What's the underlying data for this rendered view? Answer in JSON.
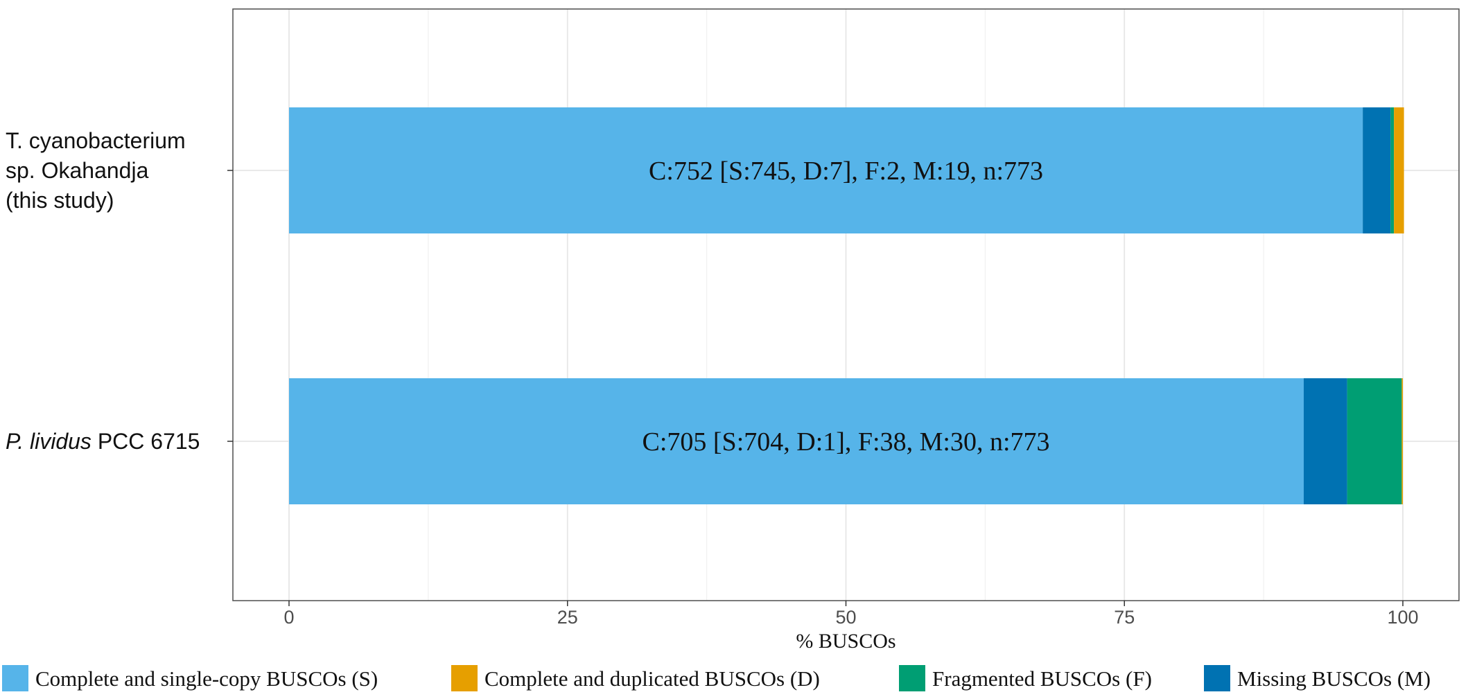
{
  "chart_data": {
    "type": "bar",
    "orientation": "horizontal",
    "stacked": true,
    "categories": [
      {
        "lines": [
          "T. cyanobacterium",
          "sp. Okahandja",
          "(this study)"
        ],
        "italic_prefix": "",
        "rest": ""
      },
      {
        "lines": [],
        "italic_prefix": "P. lividus",
        "rest": " PCC 6715"
      }
    ],
    "series": [
      {
        "name": "Complete and single-copy BUSCOs (S)",
        "key": "S",
        "color": "#56B4E9",
        "values": [
          96.4,
          91.1
        ]
      },
      {
        "name": "Missing BUSCOs (M)",
        "key": "M",
        "color": "#0072B2",
        "values": [
          2.5,
          3.9
        ]
      },
      {
        "name": "Fragmented BUSCOs (F)",
        "key": "F",
        "color": "#009E73",
        "values": [
          0.3,
          4.9
        ]
      },
      {
        "name": "Complete and duplicated BUSCOs (D)",
        "key": "D",
        "color": "#E69F00",
        "values": [
          0.9,
          0.1
        ]
      }
    ],
    "bar_labels": [
      "C:752 [S:745, D:7], F:2, M:19, n:773",
      "C:705 [S:704, D:1], F:38, M:30, n:773"
    ],
    "xlabel": "% BUSCOs",
    "xlim": [
      -5,
      105
    ],
    "xticks": [
      "0",
      "25",
      "50",
      "75",
      "100"
    ],
    "grid": true,
    "legend": {
      "position": "bottom",
      "entries": [
        {
          "label": "Complete and single-copy BUSCOs (S)",
          "color": "#56B4E9"
        },
        {
          "label": "Complete and duplicated BUSCOs (D)",
          "color": "#E69F00"
        },
        {
          "label": "Fragmented BUSCOs (F)",
          "color": "#009E73"
        },
        {
          "label": "Missing BUSCOs (M)",
          "color": "#0072B2"
        }
      ]
    }
  }
}
